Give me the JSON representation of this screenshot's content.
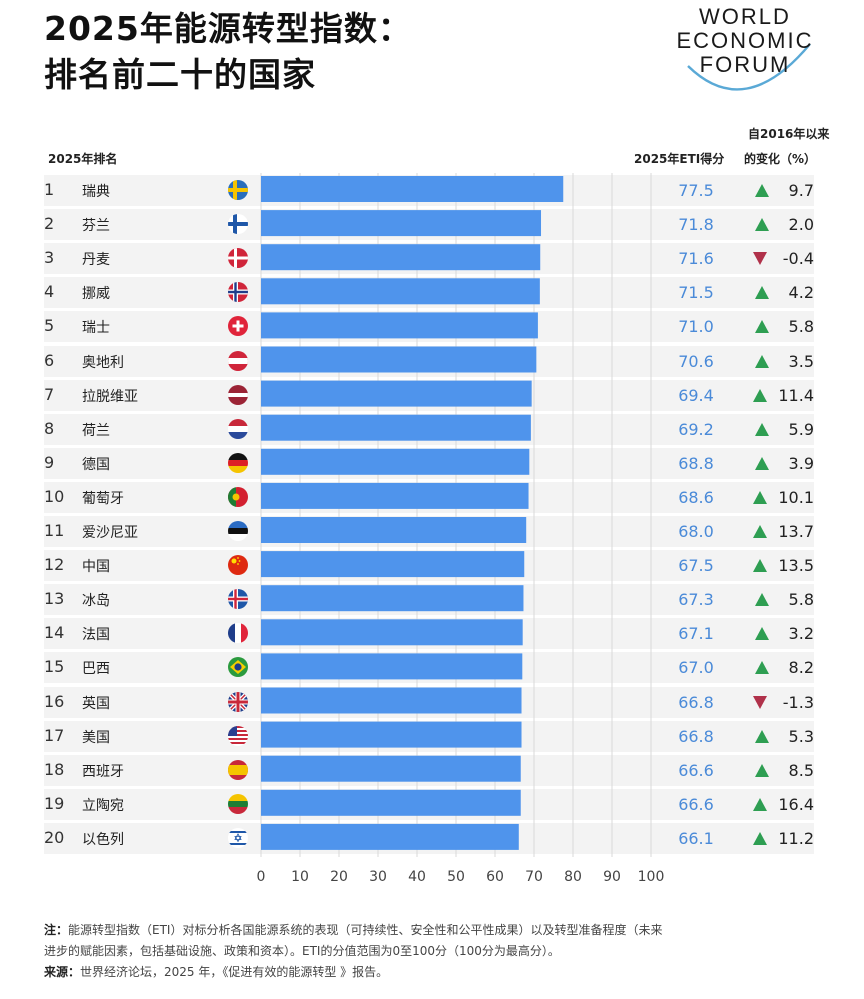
{
  "header": {
    "title_line1": "2025年能源转型指数：",
    "title_line2": "排名前二十的国家",
    "logo_line1": "WORLD",
    "logo_line2": "ECONOMIC",
    "logo_line3": "FORUM"
  },
  "columns": {
    "rank": "2025年排名",
    "score": "2025年ETI得分",
    "change_line1": "自2016年以来",
    "change_line2": "的变化（%）"
  },
  "colors": {
    "bar": "#4f94ec",
    "score_text": "#4a8ad8",
    "up": "#2e9e52",
    "down": "#b0314a"
  },
  "rows": [
    {
      "rank": "1",
      "name": "瑞典",
      "flag": "se-flag",
      "score": "77.5",
      "change": "9.7",
      "dir": "up"
    },
    {
      "rank": "2",
      "name": "芬兰",
      "flag": "fi-flag",
      "score": "71.8",
      "change": "2.0",
      "dir": "up"
    },
    {
      "rank": "3",
      "name": "丹麦",
      "flag": "dk-flag",
      "score": "71.6",
      "change": "-0.4",
      "dir": "down"
    },
    {
      "rank": "4",
      "name": "挪威",
      "flag": "no-flag",
      "score": "71.5",
      "change": "4.2",
      "dir": "up"
    },
    {
      "rank": "5",
      "name": "瑞士",
      "flag": "ch-flag",
      "score": "71.0",
      "change": "5.8",
      "dir": "up"
    },
    {
      "rank": "6",
      "name": "奥地利",
      "flag": "at-flag",
      "score": "70.6",
      "change": "3.5",
      "dir": "up"
    },
    {
      "rank": "7",
      "name": "拉脱维亚",
      "flag": "lv-flag",
      "score": "69.4",
      "change": "11.4",
      "dir": "up"
    },
    {
      "rank": "8",
      "name": "荷兰",
      "flag": "nl-flag",
      "score": "69.2",
      "change": "5.9",
      "dir": "up"
    },
    {
      "rank": "9",
      "name": "德国",
      "flag": "de-flag",
      "score": "68.8",
      "change": "3.9",
      "dir": "up"
    },
    {
      "rank": "10",
      "name": "葡萄牙",
      "flag": "pt-flag",
      "score": "68.6",
      "change": "10.1",
      "dir": "up"
    },
    {
      "rank": "11",
      "name": "爱沙尼亚",
      "flag": "ee-flag",
      "score": "68.0",
      "change": "13.7",
      "dir": "up"
    },
    {
      "rank": "12",
      "name": "中国",
      "flag": "cn-flag",
      "score": "67.5",
      "change": "13.5",
      "dir": "up"
    },
    {
      "rank": "13",
      "name": "冰岛",
      "flag": "is-flag",
      "score": "67.3",
      "change": "5.8",
      "dir": "up"
    },
    {
      "rank": "14",
      "name": "法国",
      "flag": "fr-flag",
      "score": "67.1",
      "change": "3.2",
      "dir": "up"
    },
    {
      "rank": "15",
      "name": "巴西",
      "flag": "br-flag",
      "score": "67.0",
      "change": "8.2",
      "dir": "up"
    },
    {
      "rank": "16",
      "name": "英国",
      "flag": "gb-flag",
      "score": "66.8",
      "change": "-1.3",
      "dir": "down"
    },
    {
      "rank": "17",
      "name": "美国",
      "flag": "us-flag",
      "score": "66.8",
      "change": "5.3",
      "dir": "up"
    },
    {
      "rank": "18",
      "name": "西班牙",
      "flag": "es-flag",
      "score": "66.6",
      "change": "8.5",
      "dir": "up"
    },
    {
      "rank": "19",
      "name": "立陶宛",
      "flag": "lt-flag",
      "score": "66.6",
      "change": "16.4",
      "dir": "up"
    },
    {
      "rank": "20",
      "name": "以色列",
      "flag": "il-flag",
      "score": "66.1",
      "change": "11.2",
      "dir": "up"
    }
  ],
  "chart_data": {
    "type": "bar",
    "orientation": "horizontal",
    "categories": [
      "瑞典",
      "芬兰",
      "丹麦",
      "挪威",
      "瑞士",
      "奥地利",
      "拉脱维亚",
      "荷兰",
      "德国",
      "葡萄牙",
      "爱沙尼亚",
      "中国",
      "冰岛",
      "法国",
      "巴西",
      "英国",
      "美国",
      "西班牙",
      "立陶宛",
      "以色列"
    ],
    "values": [
      77.5,
      71.8,
      71.6,
      71.5,
      71.0,
      70.6,
      69.4,
      69.2,
      68.8,
      68.6,
      68.0,
      67.5,
      67.3,
      67.1,
      67.0,
      66.8,
      66.8,
      66.6,
      66.6,
      66.1
    ],
    "xlim": [
      0,
      100
    ],
    "ticks": [
      "0",
      "10",
      "20",
      "30",
      "40",
      "50",
      "60",
      "70",
      "80",
      "90",
      "100"
    ],
    "grid": true
  },
  "notes": {
    "note_label": "注：",
    "note_text_line1": "能源转型指数（ETI）对标分析各国能源系统的表现（可持续性、安全性和公平性成果）以及转型准备程度（未来",
    "note_text_line2": "进步的赋能因素，包括基础设施、政策和资本）。ETI的分值范围为0至100分（100分为最高分）。",
    "source_label": "来源：",
    "source_text": "世界经济论坛，2025 年，《促进有效的能源转型 》报告。"
  }
}
